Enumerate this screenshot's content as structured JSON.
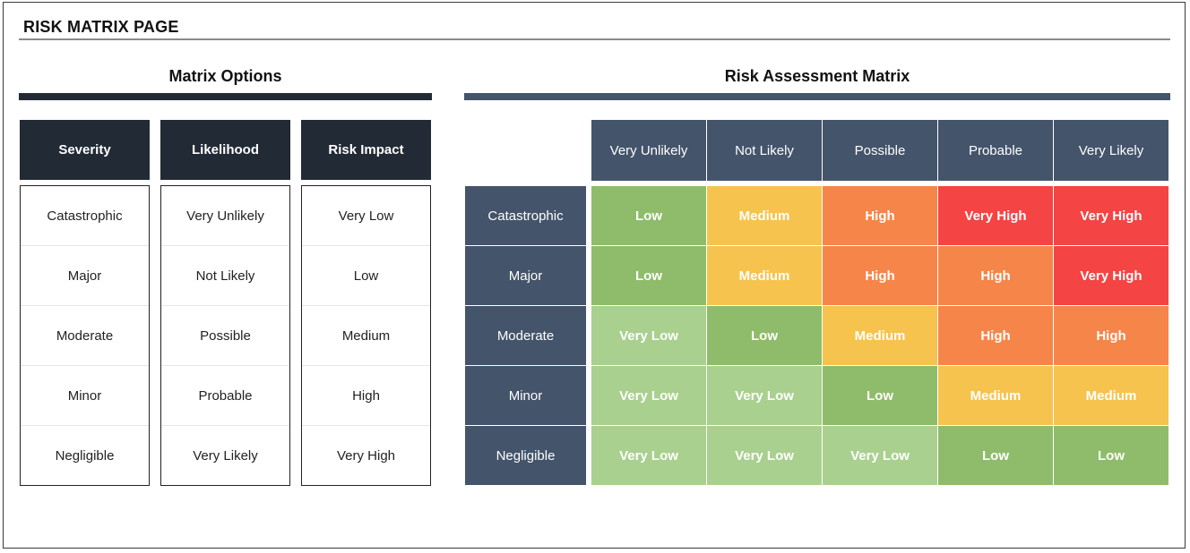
{
  "page": {
    "title": "RISK MATRIX PAGE"
  },
  "options": {
    "heading": "Matrix Options",
    "severity": {
      "header": "Severity",
      "items": [
        "Catastrophic",
        "Major",
        "Moderate",
        "Minor",
        "Negligible"
      ]
    },
    "likelihood": {
      "header": "Likelihood",
      "items": [
        "Very Unlikely",
        "Not Likely",
        "Possible",
        "Probable",
        "Very Likely"
      ]
    },
    "impact": {
      "header": "Risk Impact",
      "items": [
        "Very Low",
        "Low",
        "Medium",
        "High",
        "Very High"
      ]
    }
  },
  "matrix": {
    "heading": "Risk Assessment Matrix",
    "columns": [
      "Very Unlikely",
      "Not Likely",
      "Possible",
      "Probable",
      "Very Likely"
    ],
    "rows": [
      {
        "label": "Catastrophic",
        "cells": [
          "Low",
          "Medium",
          "High",
          "Very High",
          "Very High"
        ]
      },
      {
        "label": "Major",
        "cells": [
          "Low",
          "Medium",
          "High",
          "High",
          "Very High"
        ]
      },
      {
        "label": "Moderate",
        "cells": [
          "Very Low",
          "Low",
          "Medium",
          "High",
          "High"
        ]
      },
      {
        "label": "Minor",
        "cells": [
          "Very Low",
          "Very Low",
          "Low",
          "Medium",
          "Medium"
        ]
      },
      {
        "label": "Negligible",
        "cells": [
          "Very Low",
          "Very Low",
          "Very Low",
          "Low",
          "Low"
        ]
      }
    ]
  },
  "colors": {
    "header_dark": "#222a35",
    "header_slate": "#44546a",
    "very_low": "#a9d08e",
    "low": "#8fbc6a",
    "medium": "#f6c34f",
    "high": "#f6854a",
    "very_high": "#f44444"
  }
}
